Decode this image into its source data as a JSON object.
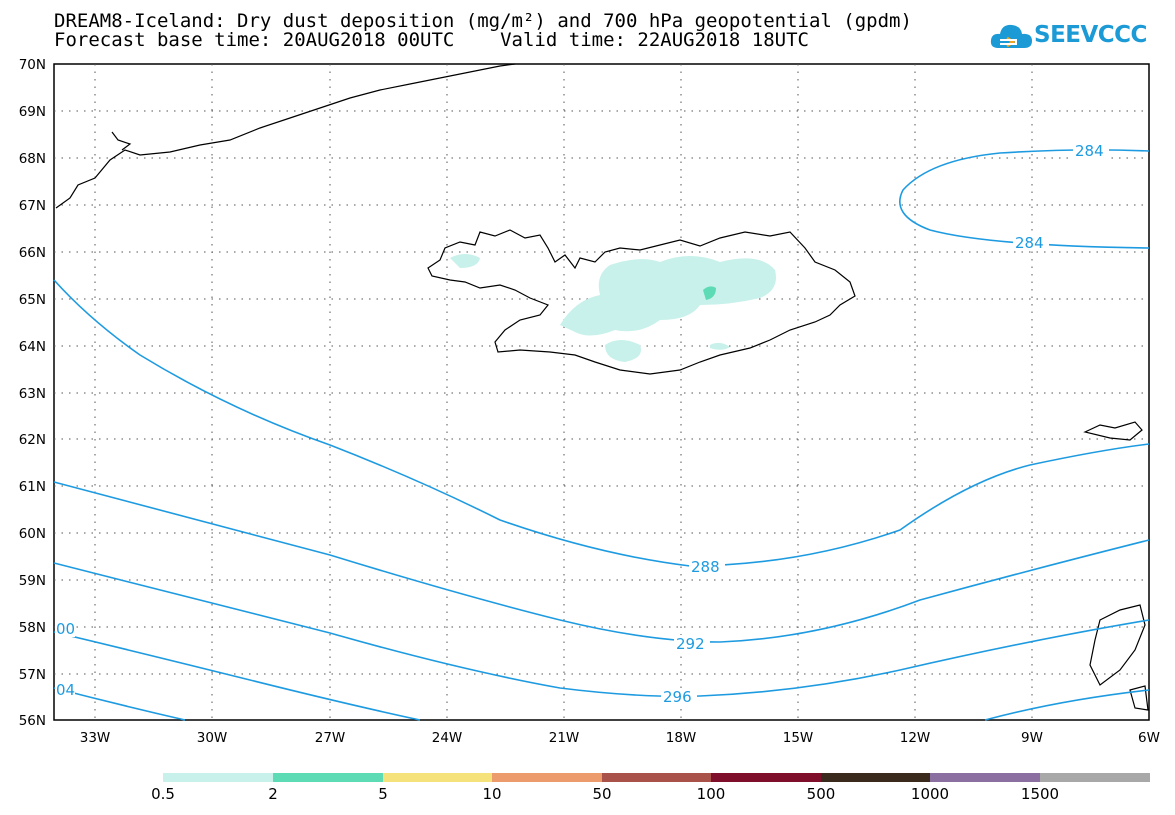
{
  "title": {
    "line1": "DREAM8-Iceland: Dry dust deposition (mg/m²) and 700 hPa geopotential (gpdm)",
    "line2": "Forecast base time: 20AUG2018 00UTC    Valid time: 22AUG2018 18UTC"
  },
  "logo": {
    "text": "SEEVCCC",
    "icon": "cloud-icon",
    "color": "#1b9ad6"
  },
  "map": {
    "lat_labels": [
      "70N",
      "69N",
      "68N",
      "67N",
      "66N",
      "65N",
      "64N",
      "63N",
      "62N",
      "61N",
      "60N",
      "59N",
      "58N",
      "57N",
      "56N"
    ],
    "lon_labels": [
      "33W",
      "30W",
      "27W",
      "24W",
      "21W",
      "18W",
      "15W",
      "12W",
      "9W",
      "6W"
    ],
    "contour_color": "#1e9be0",
    "contour_labels": [
      "284",
      "284",
      "288",
      "292",
      "296",
      "00",
      "04"
    ]
  },
  "colorbar": {
    "labels": [
      "0.5",
      "2",
      "5",
      "10",
      "50",
      "100",
      "500",
      "1000",
      "1500"
    ],
    "colors": [
      "#c7f1ea",
      "#5ddbb4",
      "#f5e27a",
      "#ec9b6c",
      "#a8524a",
      "#7e0e2a",
      "#3a2a1e",
      "#8a6fa0",
      "#a8a8a8"
    ]
  }
}
